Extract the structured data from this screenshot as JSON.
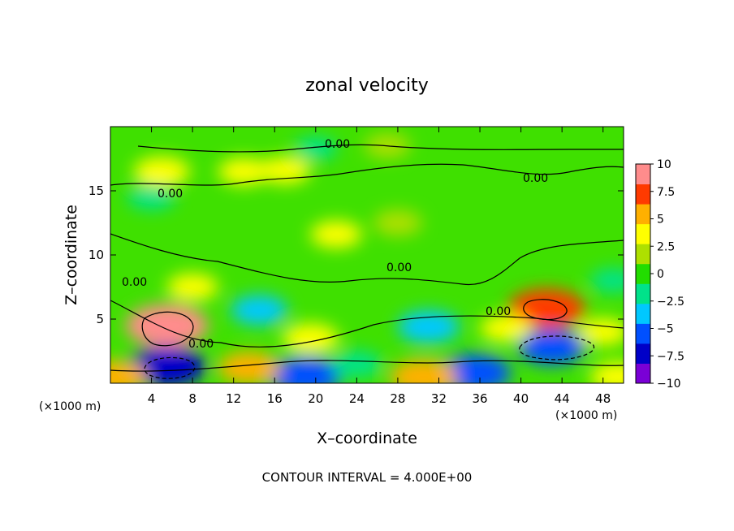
{
  "chart_data": {
    "type": "heatmap",
    "title": "zonal velocity",
    "xlabel": "X–coordinate",
    "ylabel": "Z–coordinate",
    "x_unit": "(×1000 m)",
    "footer": "CONTOUR INTERVAL = 4.000E+00",
    "xlim": [
      0,
      50
    ],
    "ylim": [
      0,
      20
    ],
    "x_ticks": [
      "4",
      "8",
      "12",
      "16",
      "20",
      "24",
      "28",
      "32",
      "36",
      "40",
      "44",
      "48"
    ],
    "y_ticks": [
      "5",
      "10",
      "15"
    ],
    "colorbar": {
      "min": -10,
      "max": 10,
      "ticks": [
        "10",
        "7.5",
        "5",
        "2.5",
        "0",
        "−2.5",
        "−5",
        "−7.5",
        "−10"
      ]
    },
    "contour_label": "0.00",
    "features": [
      {
        "x": 5.5,
        "z": 4.5,
        "value": 9
      },
      {
        "x": 5.5,
        "z": 1.3,
        "value": -8
      },
      {
        "x": 42.5,
        "z": 5.8,
        "value": 8
      },
      {
        "x": 43,
        "z": 2.8,
        "value": -6
      },
      {
        "x": 31,
        "z": 4.4,
        "value": -5
      },
      {
        "x": 14.5,
        "z": 5.7,
        "value": -4
      },
      {
        "x": 19,
        "z": 0.6,
        "value": -7
      },
      {
        "x": 35.5,
        "z": 0.8,
        "value": -7
      },
      {
        "x": 30.5,
        "z": 0.5,
        "value": 6
      },
      {
        "x": 13.5,
        "z": 1.2,
        "value": 5
      },
      {
        "x": 19.5,
        "z": 3.5,
        "value": 4
      },
      {
        "x": 5,
        "z": 16.5,
        "value": 4
      },
      {
        "x": 13,
        "z": 16.5,
        "value": 3
      },
      {
        "x": 17,
        "z": 16.6,
        "value": 3
      },
      {
        "x": 22,
        "z": 11.6,
        "value": 3
      },
      {
        "x": 28,
        "z": 12.5,
        "value": 2.5
      },
      {
        "x": 20,
        "z": 18.3,
        "value": -1.5
      },
      {
        "x": 4,
        "z": 14.5,
        "value": -2.5
      },
      {
        "x": 27,
        "z": 18.5,
        "value": 2
      },
      {
        "x": 38.5,
        "z": 4.3,
        "value": 3
      },
      {
        "x": 48,
        "z": 4,
        "value": 3
      },
      {
        "x": 0.5,
        "z": 0.5,
        "value": 5
      },
      {
        "x": 49.5,
        "z": 0.5,
        "value": 4
      },
      {
        "x": 8,
        "z": 7.5,
        "value": 3
      },
      {
        "x": 24,
        "z": 1.5,
        "value": -3
      },
      {
        "x": 49,
        "z": 8,
        "value": -2
      }
    ]
  },
  "colors": {
    "scale": [
      "#7a00d6",
      "#0000c8",
      "#0050ff",
      "#00c8ff",
      "#00e28a",
      "#22dd00",
      "#aee000",
      "#ffff00",
      "#ffb000",
      "#ff3a00",
      "#ff8c8c"
    ]
  }
}
